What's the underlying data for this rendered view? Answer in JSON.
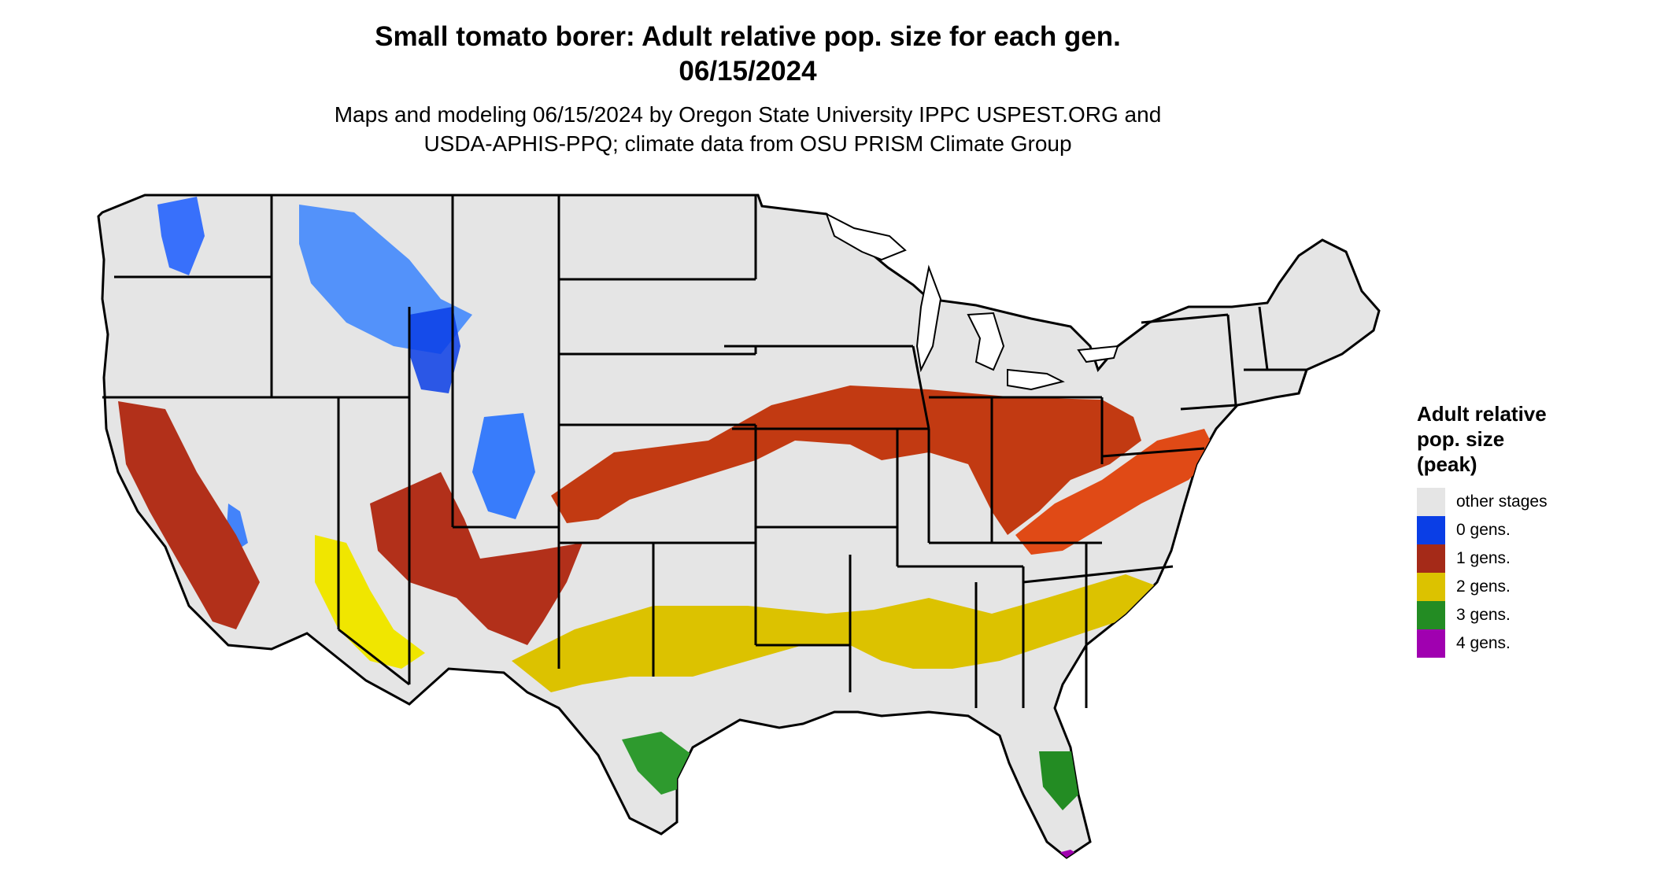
{
  "title": {
    "line1": "Small tomato borer: Adult relative pop. size for each gen.",
    "line2": "06/15/2024"
  },
  "subtitle": {
    "line1": "Maps and modeling 06/15/2024 by Oregon State University IPPC USPEST.ORG and",
    "line2": "USDA-APHIS-PPQ; climate data from OSU PRISM Climate Group"
  },
  "legend": {
    "title_lines": [
      "Adult relative",
      "pop. size",
      "(peak)"
    ],
    "items": [
      {
        "label": "other stages",
        "color": "#e5e5e5"
      },
      {
        "label": "0 gens.",
        "color": "#0a3ee6"
      },
      {
        "label": "1 gens.",
        "color": "#a52a18"
      },
      {
        "label": "2 gens.",
        "color": "#dcc200"
      },
      {
        "label": "3 gens.",
        "color": "#238c23"
      },
      {
        "label": "4 gens.",
        "color": "#a000b0"
      }
    ]
  },
  "map": {
    "region": "conterminous United States",
    "base_color": "#e5e5e5",
    "border_color": "#000000"
  }
}
